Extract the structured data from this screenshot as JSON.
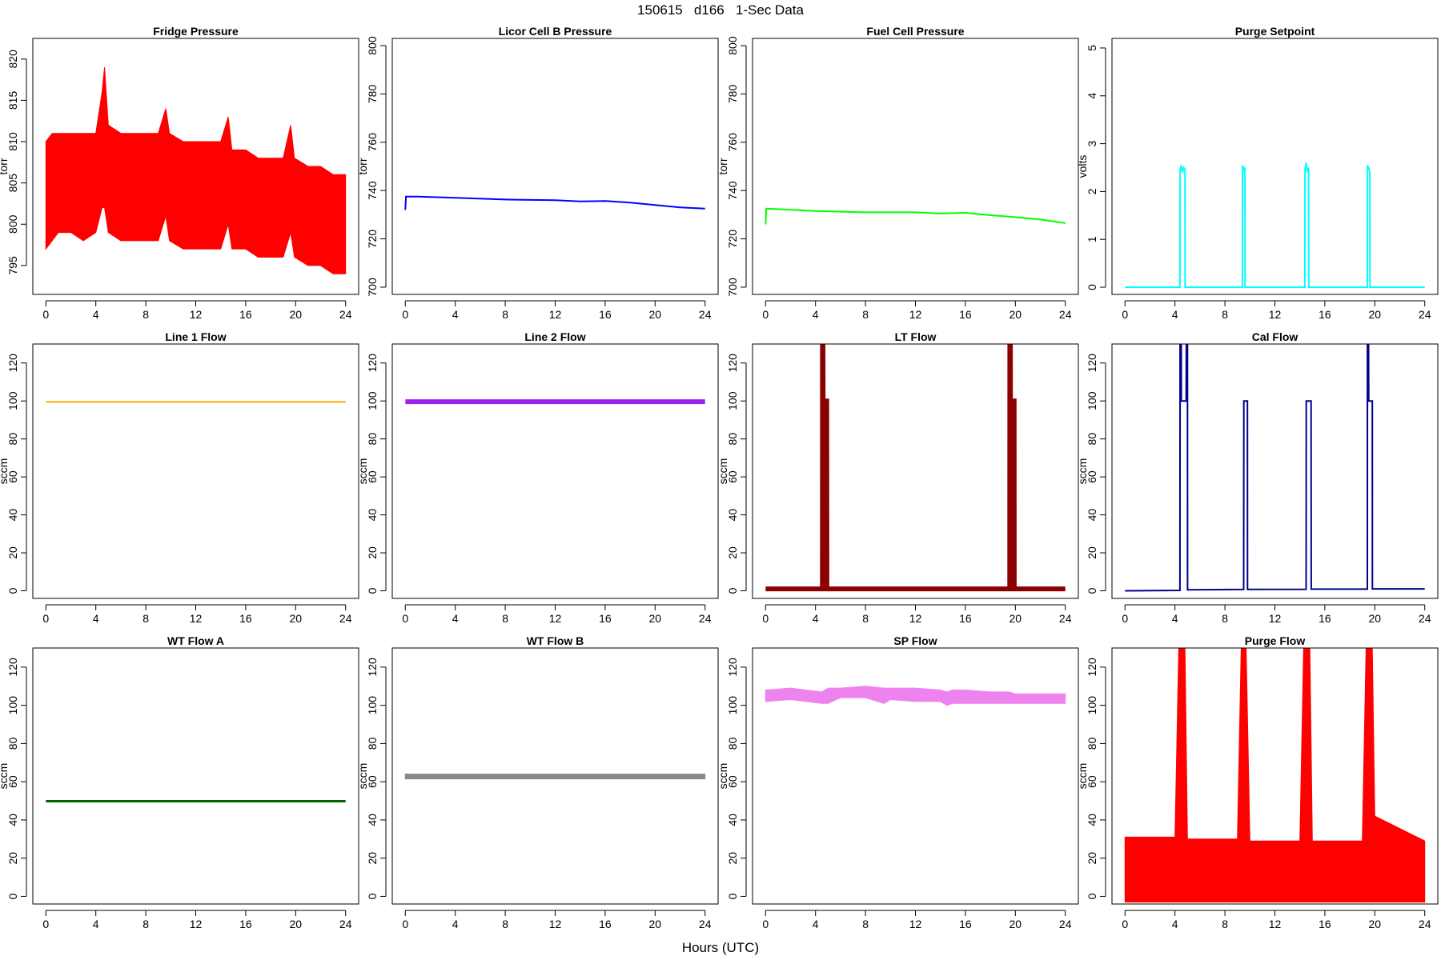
{
  "figure": {
    "title": "150615   d166   1-Sec Data",
    "xlabel": "Hours (UTC)"
  },
  "chart_data": [
    {
      "type": "line",
      "title": "Fridge Pressure",
      "ylabel": "torr",
      "xlim": [
        0,
        24
      ],
      "ylim": [
        791.5,
        822.5
      ],
      "xticks": [
        0,
        4,
        8,
        12,
        16,
        20,
        24
      ],
      "yticks": [
        795,
        800,
        805,
        810,
        815,
        820
      ],
      "series": [
        {
          "color": "#ff0000",
          "x": [
            0,
            0.5,
            1,
            2,
            3,
            4,
            4.5,
            4.7,
            5,
            6,
            7,
            8,
            9,
            9.6,
            9.9,
            11,
            12,
            13,
            14,
            14.6,
            14.9,
            16,
            17,
            18,
            19,
            19.6,
            19.9,
            21,
            22,
            23,
            24
          ],
          "low": [
            797,
            798,
            799,
            799,
            798,
            799,
            802,
            802,
            799,
            798,
            798,
            798,
            798,
            801,
            798,
            797,
            797,
            797,
            797,
            800,
            797,
            797,
            796,
            796,
            796,
            799,
            796,
            795,
            795,
            794,
            794
          ],
          "high": [
            810,
            811,
            811,
            811,
            811,
            811,
            816,
            819,
            812,
            811,
            811,
            811,
            811,
            814,
            811,
            810,
            810,
            810,
            810,
            813,
            809,
            809,
            808,
            808,
            808,
            812,
            808,
            807,
            807,
            806,
            806
          ]
        }
      ]
    },
    {
      "type": "line",
      "title": "Licor Cell B Pressure",
      "ylabel": "torr",
      "xlim": [
        0,
        24
      ],
      "ylim": [
        697,
        803
      ],
      "xticks": [
        0,
        4,
        8,
        12,
        16,
        20,
        24
      ],
      "yticks": [
        700,
        720,
        740,
        760,
        780,
        800
      ],
      "series": [
        {
          "color": "#0000ff",
          "x": [
            0,
            0.05,
            1,
            4,
            8,
            12,
            14,
            16,
            18,
            20,
            22,
            24
          ],
          "y": [
            732,
            737.5,
            737.5,
            737,
            736.3,
            736,
            735.5,
            735.7,
            735,
            734,
            733,
            732.5
          ]
        }
      ]
    },
    {
      "type": "line",
      "title": "Fuel Cell Pressure",
      "ylabel": "torr",
      "xlim": [
        0,
        24
      ],
      "ylim": [
        697,
        803
      ],
      "xticks": [
        0,
        4,
        8,
        12,
        16,
        20,
        24
      ],
      "yticks": [
        700,
        720,
        740,
        760,
        780,
        800
      ],
      "series": [
        {
          "color": "#00ff00",
          "x": [
            0,
            0.05,
            1,
            4,
            8,
            12,
            14,
            16,
            18,
            20,
            22,
            24
          ],
          "y": [
            726,
            732.5,
            732.3,
            731.5,
            731,
            731,
            730.5,
            730.8,
            729.8,
            729,
            728,
            726.5
          ]
        }
      ]
    },
    {
      "type": "line",
      "title": "Purge Setpoint",
      "ylabel": "volts",
      "xlim": [
        0,
        24
      ],
      "ylim": [
        -0.15,
        5.2
      ],
      "xticks": [
        0,
        4,
        8,
        12,
        16,
        20,
        24
      ],
      "yticks": [
        0,
        1,
        2,
        3,
        4,
        5
      ],
      "series": [
        {
          "color": "#00ffff",
          "x": [
            0,
            4.4,
            4.41,
            4.5,
            4.6,
            4.7,
            4.8,
            4.81,
            9.4,
            9.41,
            9.5,
            9.6,
            9.61,
            14.4,
            14.41,
            14.5,
            14.6,
            14.7,
            14.71,
            19.4,
            19.41,
            19.5,
            19.6,
            19.61,
            24
          ],
          "y": [
            0,
            0,
            2.45,
            2.55,
            2.4,
            2.5,
            2.45,
            0,
            0,
            2.55,
            2.45,
            2.5,
            0,
            0,
            2.45,
            2.6,
            2.4,
            2.5,
            0,
            0,
            2.55,
            2.5,
            2.4,
            0,
            0
          ]
        }
      ]
    },
    {
      "type": "line",
      "title": "Line 1 Flow",
      "ylabel": "sccm",
      "xlim": [
        0,
        24
      ],
      "ylim": [
        -4,
        130
      ],
      "xticks": [
        0,
        4,
        8,
        12,
        16,
        20,
        24
      ],
      "yticks": [
        0,
        20,
        40,
        60,
        80,
        100,
        120
      ],
      "series": [
        {
          "color": "#ffa500",
          "x": [
            0,
            24
          ],
          "y": [
            99.5,
            99.5
          ]
        }
      ]
    },
    {
      "type": "line",
      "title": "Line 2 Flow",
      "ylabel": "sccm",
      "xlim": [
        0,
        24
      ],
      "ylim": [
        -4,
        130
      ],
      "xticks": [
        0,
        4,
        8,
        12,
        16,
        20,
        24
      ],
      "yticks": [
        0,
        20,
        40,
        60,
        80,
        100,
        120
      ],
      "series": [
        {
          "color": "#a020f0",
          "x": [
            0,
            24
          ],
          "y": [
            99.6,
            99.6
          ]
        }
      ]
    },
    {
      "type": "line",
      "title": "LT Flow",
      "ylabel": "sccm",
      "xlim": [
        0,
        24
      ],
      "ylim": [
        -4,
        130
      ],
      "xticks": [
        0,
        4,
        8,
        12,
        16,
        20,
        24
      ],
      "yticks": [
        0,
        20,
        40,
        60,
        80,
        100,
        120
      ],
      "series": [
        {
          "color": "#8b0000",
          "x": [
            0,
            4.55,
            4.56,
            4.6,
            4.61,
            4.9,
            4.91,
            19.55,
            19.56,
            19.6,
            19.61,
            19.9,
            19.91,
            24
          ],
          "y": [
            1,
            1,
            130,
            130,
            100,
            100,
            1,
            1,
            130,
            130,
            100,
            100,
            1,
            1
          ]
        }
      ]
    },
    {
      "type": "line",
      "title": "Cal Flow",
      "ylabel": "sccm",
      "xlim": [
        0,
        24
      ],
      "ylim": [
        -4,
        130
      ],
      "xticks": [
        0,
        4,
        8,
        12,
        16,
        20,
        24
      ],
      "yticks": [
        0,
        20,
        40,
        60,
        80,
        100,
        120
      ],
      "series": [
        {
          "color": "#00008b",
          "x": [
            0,
            4.4,
            4.41,
            4.5,
            4.51,
            4.9,
            4.91,
            5.0,
            5.01,
            9.5,
            9.51,
            9.8,
            9.81,
            14.5,
            14.51,
            14.9,
            14.91,
            19.4,
            19.41,
            19.5,
            19.51,
            19.8,
            19.81,
            24
          ],
          "y": [
            0,
            0.2,
            130,
            130,
            100,
            100,
            130,
            130,
            0.5,
            0.7,
            100,
            100,
            0.7,
            0.8,
            100,
            100,
            0.9,
            0.9,
            130,
            130,
            100,
            100,
            1.0,
            1.0
          ]
        }
      ]
    },
    {
      "type": "line",
      "title": "WT Flow A",
      "ylabel": "sccm",
      "xlim": [
        0,
        24
      ],
      "ylim": [
        -4,
        130
      ],
      "xticks": [
        0,
        4,
        8,
        12,
        16,
        20,
        24
      ],
      "yticks": [
        0,
        20,
        40,
        60,
        80,
        100,
        120
      ],
      "series": [
        {
          "color": "#006400",
          "x": [
            0,
            24
          ],
          "y": [
            49.8,
            49.8
          ]
        }
      ]
    },
    {
      "type": "line",
      "title": "WT Flow B",
      "ylabel": "sccm",
      "xlim": [
        0,
        24
      ],
      "ylim": [
        -4,
        130
      ],
      "xticks": [
        0,
        4,
        8,
        12,
        16,
        20,
        24
      ],
      "yticks": [
        0,
        20,
        40,
        60,
        80,
        100,
        120
      ],
      "series": [
        {
          "color": "#888888",
          "x": [
            0,
            24
          ],
          "low": [
            61.5,
            61.5
          ],
          "high": [
            64,
            64
          ]
        }
      ]
    },
    {
      "type": "line",
      "title": "SP Flow",
      "ylabel": "sccm",
      "xlim": [
        0,
        24
      ],
      "ylim": [
        -4,
        130
      ],
      "xticks": [
        0,
        4,
        8,
        12,
        16,
        20,
        24
      ],
      "yticks": [
        0,
        20,
        40,
        60,
        80,
        100,
        120
      ],
      "series": [
        {
          "color": "#ee82ee",
          "x": [
            0,
            2,
            4.5,
            5,
            6,
            8,
            9.5,
            10,
            12,
            14,
            14.5,
            15,
            16,
            18,
            19.5,
            20,
            22,
            24
          ],
          "low": [
            102,
            103,
            101,
            101,
            104,
            104,
            101,
            103,
            102,
            102,
            100,
            101,
            101,
            101,
            101,
            101,
            101,
            101
          ],
          "high": [
            108,
            109,
            107,
            109,
            109,
            110,
            109,
            109,
            109,
            108,
            107,
            108,
            108,
            107,
            107,
            106,
            106,
            106
          ]
        }
      ]
    },
    {
      "type": "line",
      "title": "Purge Flow",
      "ylabel": "sccm",
      "xlim": [
        0,
        24
      ],
      "ylim": [
        -4,
        130
      ],
      "xticks": [
        0,
        4,
        8,
        12,
        16,
        20,
        24
      ],
      "yticks": [
        0,
        20,
        40,
        60,
        80,
        100,
        120
      ],
      "series": [
        {
          "color": "#ff0000",
          "x": [
            0,
            4,
            4.3,
            4.8,
            5,
            9,
            9.3,
            9.7,
            10,
            14,
            14.3,
            14.8,
            15,
            19,
            19.3,
            19.8,
            20,
            24
          ],
          "low": [
            -3,
            -3,
            -3,
            -3,
            -3,
            -3,
            -3,
            -3,
            -3,
            -3,
            -3,
            -3,
            -3,
            -3,
            -3,
            -3,
            -3,
            -3
          ],
          "high": [
            31,
            31,
            130,
            130,
            30,
            30,
            130,
            130,
            29,
            29,
            130,
            130,
            29,
            29,
            130,
            130,
            42,
            29
          ]
        }
      ]
    }
  ]
}
